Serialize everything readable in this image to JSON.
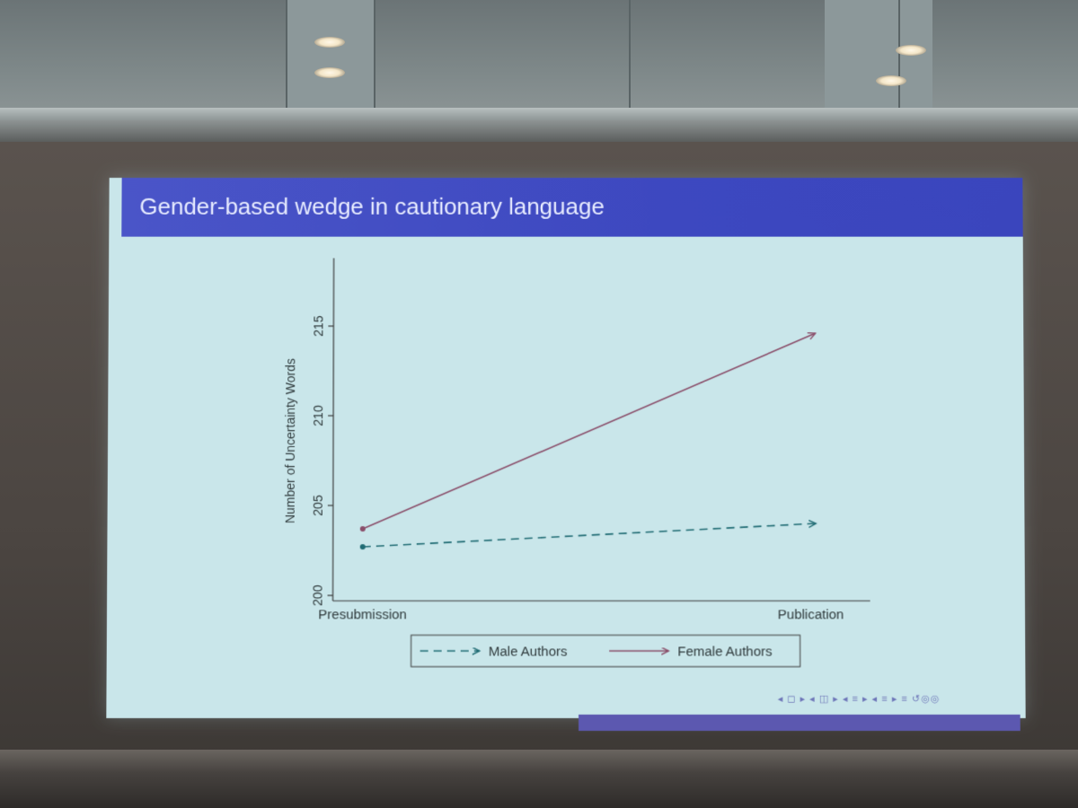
{
  "slide": {
    "title": "Gender-based wedge in cautionary language",
    "navigation": "◂ ◻ ▸ ◂ ◫ ▸ ◂ ≡ ▸ ◂ ≡ ▸   ≡   ↺◎◎"
  },
  "colors": {
    "header": "#3d48c0",
    "slide_bg": "#c9e6ea",
    "male": "#1f6b73",
    "female": "#8a4e6a",
    "axis": "#3b3b3b"
  },
  "chart_data": {
    "type": "line",
    "title": "",
    "xlabel": "",
    "ylabel": "Number of Uncertainty Words",
    "categories": [
      "Presubmission",
      "Publication"
    ],
    "yticks": [
      200,
      205,
      210,
      215
    ],
    "ylim": [
      199.7,
      218.8
    ],
    "series": [
      {
        "name": "Male Authors",
        "values": [
          202.7,
          204.0
        ],
        "style": "dashed"
      },
      {
        "name": "Female Authors",
        "values": [
          203.7,
          214.6
        ],
        "style": "solid"
      }
    ],
    "legend_position": "bottom",
    "grid": false
  }
}
